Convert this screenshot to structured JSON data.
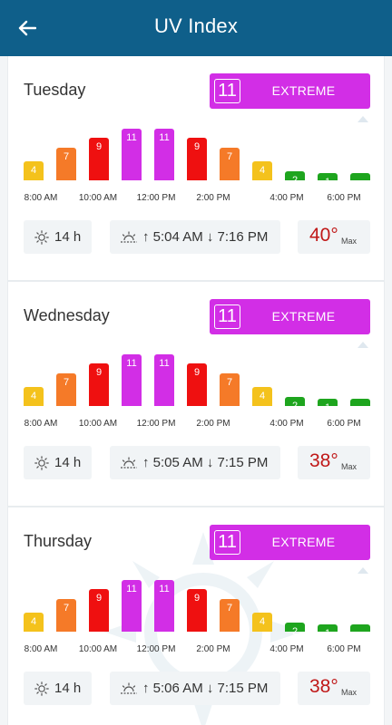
{
  "header": {
    "title": "UV Index",
    "back_icon": "arrow-left-icon"
  },
  "colors": {
    "header_bg": "#0f5f8a",
    "extreme": "#d22ee6",
    "very_high": "#ef1010",
    "high": "#f57a28",
    "moderate": "#f4c21c",
    "low": "#1ea51e",
    "max_temp": "#c01818"
  },
  "time_labels": [
    "8:00 AM",
    "10:00 AM",
    "12:00 PM",
    "2:00 PM",
    "4:00 PM",
    "6:00 PM"
  ],
  "days": [
    {
      "name": "Tuesday",
      "uv_max": "11",
      "uv_level": "EXTREME",
      "hourly_uv": [
        4,
        7,
        9,
        11,
        11,
        9,
        7,
        4,
        2,
        1,
        0
      ],
      "uv_hours": "14 h",
      "sunrise_sunset": "↑ 5:04 AM ↓ 7:16 PM",
      "max_temp": "40°",
      "max_label": "Max"
    },
    {
      "name": "Wednesday",
      "uv_max": "11",
      "uv_level": "EXTREME",
      "hourly_uv": [
        4,
        7,
        9,
        11,
        11,
        9,
        7,
        4,
        2,
        1,
        0
      ],
      "uv_hours": "14 h",
      "sunrise_sunset": "↑ 5:05 AM ↓ 7:15 PM",
      "max_temp": "38°",
      "max_label": "Max"
    },
    {
      "name": "Thursday",
      "uv_max": "11",
      "uv_level": "EXTREME",
      "hourly_uv": [
        4,
        7,
        9,
        11,
        11,
        9,
        7,
        4,
        2,
        1,
        0
      ],
      "uv_hours": "14 h",
      "sunrise_sunset": "↑ 5:06 AM ↓ 7:15 PM",
      "max_temp": "38°",
      "max_label": "Max"
    }
  ]
}
